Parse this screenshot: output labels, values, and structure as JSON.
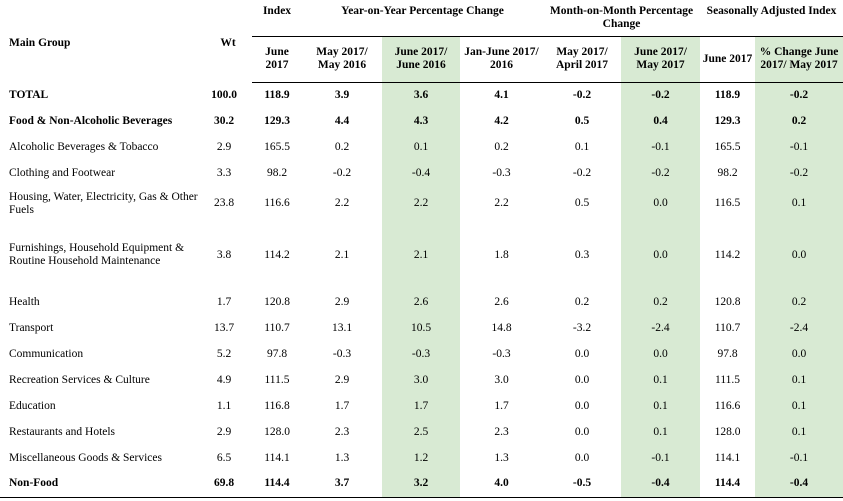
{
  "header": {
    "main_group": "Main Group",
    "wt": "Wt",
    "index": "Index",
    "yoy": "Year-on-Year Percentage Change",
    "mom": "Month-on-Month Percentage Change",
    "sa": "Seasonally Adjusted Index",
    "sub": [
      "June 2017",
      "May 2017/ May 2016",
      "June 2017/ June 2016",
      "Jan-June 2017/ 2016",
      "May 2017/ April 2017",
      "June 2017/ May 2017",
      "June 2017",
      "% Change June 2017/ May 2017"
    ]
  },
  "rows": [
    {
      "group": "TOTAL",
      "wt": "100.0",
      "v": [
        "118.9",
        "3.9",
        "3.6",
        "4.1",
        "-0.2",
        "-0.2",
        "118.9",
        "-0.2"
      ],
      "bold": true
    },
    {
      "group": "Food & Non-Alcoholic Beverages",
      "wt": "30.2",
      "v": [
        "129.3",
        "4.4",
        "4.3",
        "4.2",
        "0.5",
        "0.4",
        "129.3",
        "0.2"
      ],
      "bold": true
    },
    {
      "group": "Alcoholic Beverages & Tobacco",
      "wt": "2.9",
      "v": [
        "165.5",
        "0.2",
        "0.1",
        "0.2",
        "0.1",
        "-0.1",
        "165.5",
        "-0.1"
      ]
    },
    {
      "group": "Clothing and Footwear",
      "wt": "3.3",
      "v": [
        "98.2",
        "-0.2",
        "-0.4",
        "-0.3",
        "-0.2",
        "-0.2",
        "98.2",
        "-0.2"
      ]
    },
    {
      "group": "Housing, Water, Electricity, Gas & Other Fuels",
      "wt": "23.8",
      "v": [
        "116.6",
        "2.2",
        "2.2",
        "2.2",
        "0.5",
        "0.0",
        "116.5",
        "0.1"
      ]
    },
    {
      "group": "Furnishings, Household Equipment & Routine Household Maintenance",
      "wt": "3.8",
      "v": [
        "114.2",
        "2.1",
        "2.1",
        "1.8",
        "0.3",
        "0.0",
        "114.2",
        "0.0"
      ]
    },
    {
      "group": "Health",
      "wt": "1.7",
      "v": [
        "120.8",
        "2.9",
        "2.6",
        "2.6",
        "0.2",
        "0.2",
        "120.8",
        "0.2"
      ]
    },
    {
      "group": "Transport",
      "wt": "13.7",
      "v": [
        "110.7",
        "13.1",
        "10.5",
        "14.8",
        "-3.2",
        "-2.4",
        "110.7",
        "-2.4"
      ]
    },
    {
      "group": "Communication",
      "wt": "5.2",
      "v": [
        "97.8",
        "-0.3",
        "-0.3",
        "-0.3",
        "0.0",
        "0.0",
        "97.8",
        "0.0"
      ]
    },
    {
      "group": "Recreation Services & Culture",
      "wt": "4.9",
      "v": [
        "111.5",
        "2.9",
        "3.0",
        "3.0",
        "0.0",
        "0.1",
        "111.5",
        "0.1"
      ]
    },
    {
      "group": "Education",
      "wt": "1.1",
      "v": [
        "116.8",
        "1.7",
        "1.7",
        "1.7",
        "0.0",
        "0.1",
        "116.6",
        "0.1"
      ]
    },
    {
      "group": "Restaurants and Hotels",
      "wt": "2.9",
      "v": [
        "128.0",
        "2.3",
        "2.5",
        "2.3",
        "0.0",
        "0.1",
        "128.0",
        "0.1"
      ]
    },
    {
      "group": "Miscellaneous Goods & Services",
      "wt": "6.5",
      "v": [
        "114.1",
        "1.3",
        "1.2",
        "1.3",
        "0.0",
        "-0.1",
        "114.1",
        "-0.1"
      ]
    },
    {
      "group": "Non-Food",
      "wt": "69.8",
      "v": [
        "114.4",
        "3.7",
        "3.2",
        "4.0",
        "-0.5",
        "-0.4",
        "114.4",
        "-0.4"
      ],
      "bold": true
    }
  ]
}
